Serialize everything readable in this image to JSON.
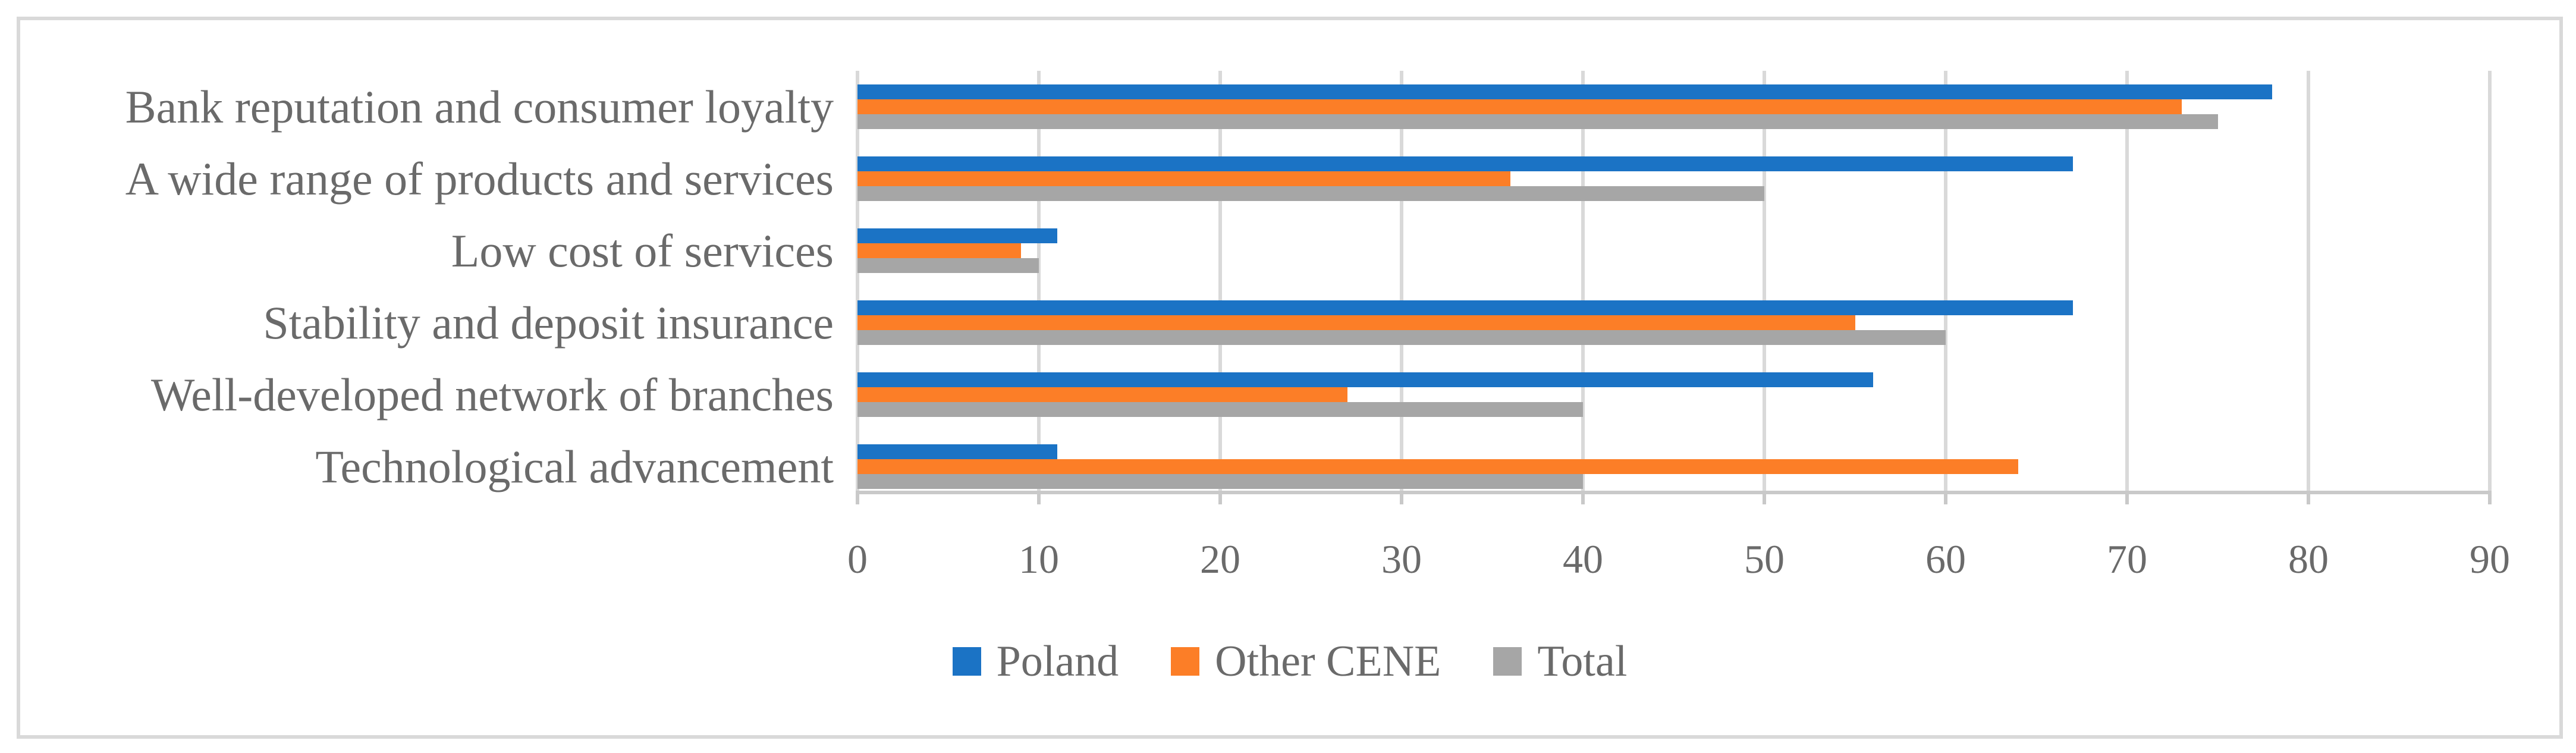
{
  "chart_data": {
    "type": "bar",
    "orientation": "horizontal",
    "title": "",
    "xlabel": "",
    "ylabel": "",
    "categories": [
      "Bank reputation and consumer loyalty",
      "A wide range of products and services",
      "Low cost of services",
      "Stability and deposit insurance",
      "Well-developed network of branches",
      "Technological advancement"
    ],
    "series": [
      {
        "name": "Poland",
        "color": "#1B73C5",
        "values": [
          78,
          67,
          11,
          67,
          56,
          11
        ]
      },
      {
        "name": "Other CENE",
        "color": "#FC7E27",
        "values": [
          73,
          36,
          9,
          55,
          27,
          64
        ]
      },
      {
        "name": "Total",
        "color": "#A6A6A6",
        "values": [
          75,
          50,
          10,
          60,
          40,
          40
        ]
      }
    ],
    "xlim": [
      0,
      90
    ],
    "xticks": [
      0,
      10,
      20,
      30,
      40,
      50,
      60,
      70,
      80,
      90
    ],
    "grid": "vertical-gridlines",
    "legend_position": "bottom-center"
  },
  "colors": {
    "figure_border": "#D9D9D9",
    "gridline": "#D9D9D9",
    "axis_line": "#C9C9C9",
    "label_text": "#6A6A6A",
    "background": "#FFFFFF"
  }
}
